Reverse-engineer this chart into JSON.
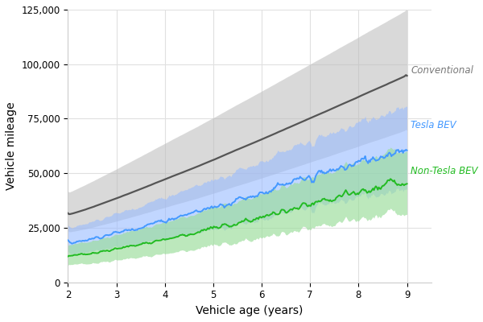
{
  "title": "",
  "xlabel": "Vehicle age (years)",
  "ylabel": "Vehicle mileage",
  "xlim": [
    2,
    9.5
  ],
  "ylim": [
    0,
    125000
  ],
  "yticks": [
    0,
    25000,
    50000,
    75000,
    100000,
    125000
  ],
  "ytick_labels": [
    "0",
    "25,000",
    "50,000",
    "75,000",
    "100,000",
    "125,000"
  ],
  "xticks": [
    2,
    3,
    4,
    5,
    6,
    7,
    8,
    9
  ],
  "conv_color": "#555555",
  "conv_fill": "#bbbbbb",
  "tesla_color": "#4499ff",
  "tesla_fill": "#99bbff",
  "nontesla_color": "#22bb22",
  "nontesla_fill": "#99dd99",
  "label_conv": "Conventional",
  "label_tesla": "Tesla BEV",
  "label_nontesla": "Non-Tesla BEV",
  "bg_color": "#ffffff",
  "grid_color": "#e0e0e0",
  "figsize": [
    6.0,
    4.0
  ],
  "dpi": 100
}
